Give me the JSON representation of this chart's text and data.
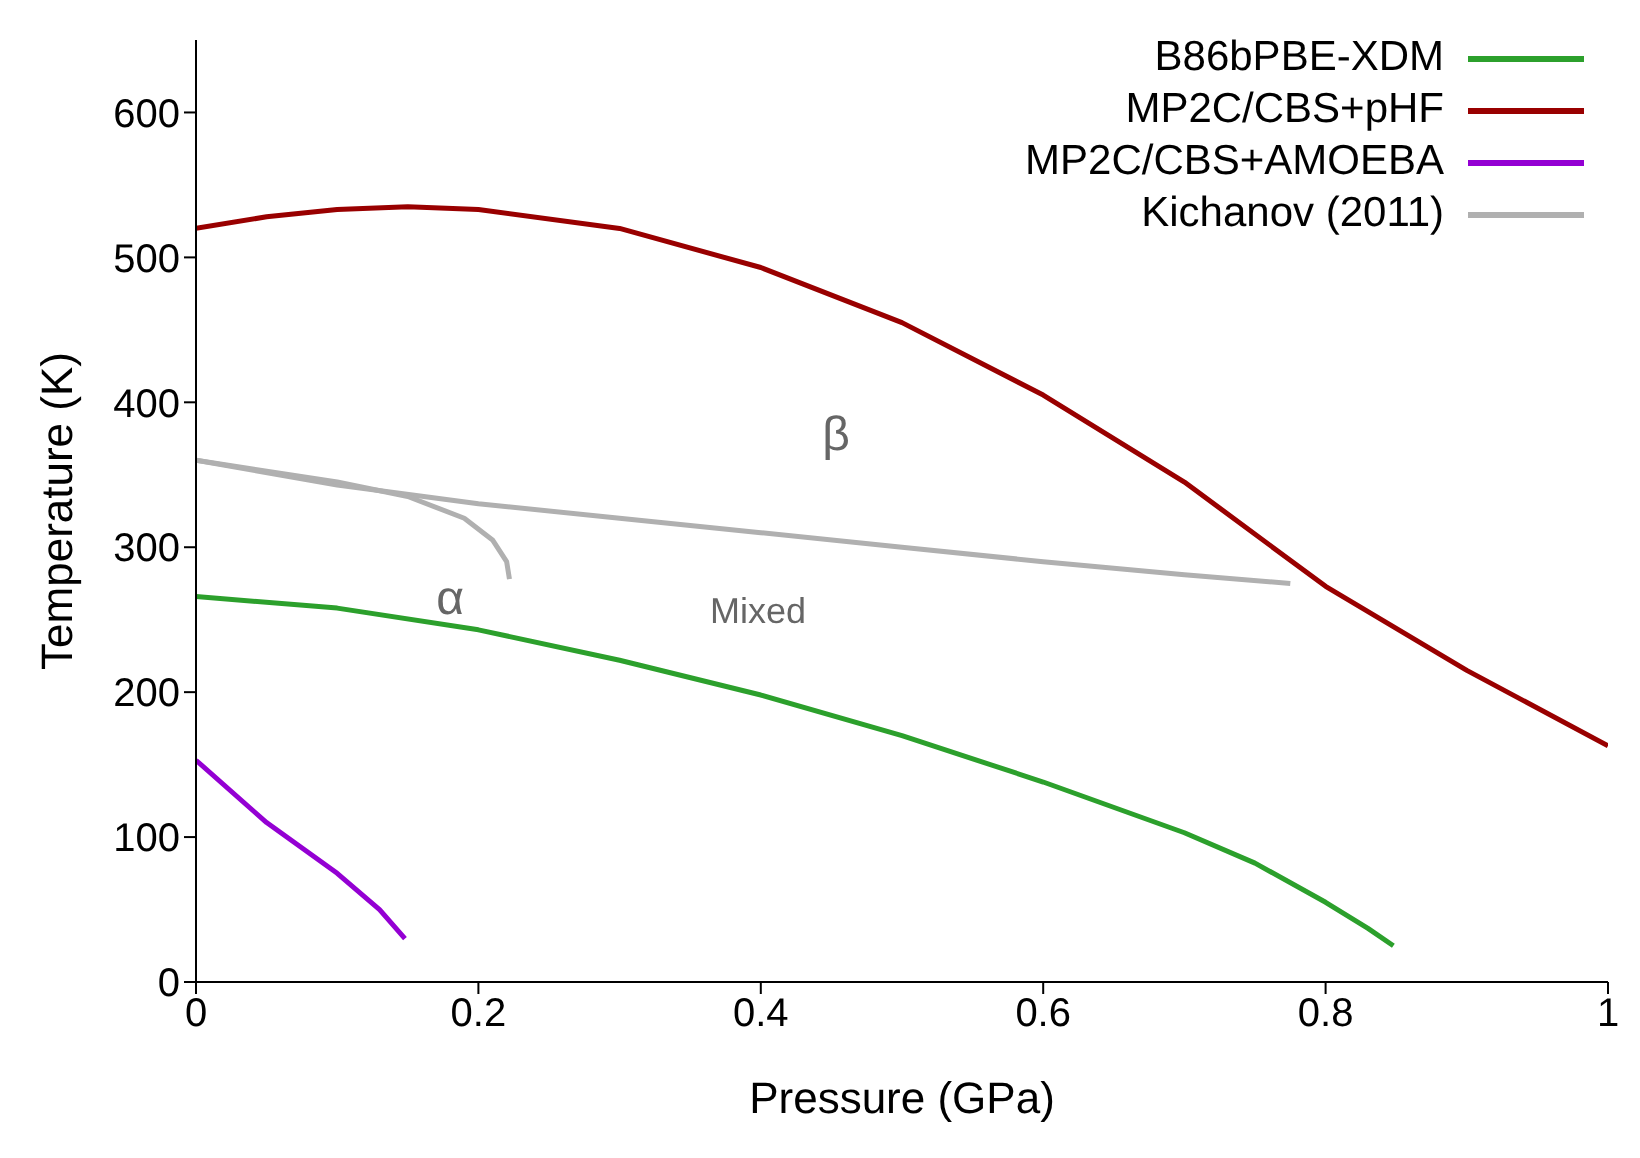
{
  "chart_data": {
    "type": "line",
    "xlabel": "Pressure (GPa)",
    "ylabel": "Temperature (K)",
    "xlim": [
      0,
      1
    ],
    "xticks": [
      0,
      0.2,
      0.4,
      0.6,
      0.8,
      1
    ],
    "ylim": [
      0,
      650
    ],
    "yticks": [
      0,
      100,
      200,
      300,
      400,
      500,
      600
    ],
    "grid": false,
    "legend": "top right",
    "marker": "none",
    "series": [
      {
        "name": "B86bPBE-XDM",
        "color": "#2ca02c",
        "x": [
          0,
          0.1,
          0.2,
          0.3,
          0.4,
          0.5,
          0.6,
          0.7,
          0.75,
          0.8,
          0.83,
          0.848
        ],
        "values": [
          266,
          258,
          243,
          222,
          198,
          170,
          138,
          103,
          82,
          55,
          37,
          25
        ]
      },
      {
        "name": "MP2C/CBS+pHF",
        "color": "#990000",
        "x": [
          0,
          0.05,
          0.1,
          0.15,
          0.2,
          0.3,
          0.4,
          0.5,
          0.6,
          0.7,
          0.8,
          0.9,
          1
        ],
        "values": [
          520,
          528,
          533,
          535,
          533,
          520,
          493,
          455,
          405,
          345,
          273,
          215,
          163
        ]
      },
      {
        "name": "MP2C/CBS+AMOEBA",
        "color": "#9400d3",
        "x": [
          0,
          0.05,
          0.1,
          0.13,
          0.148
        ],
        "values": [
          153,
          110,
          75,
          50,
          30
        ]
      },
      {
        "name": "Kichanov (2011)",
        "color": "#b0b0b0",
        "x": [
          0,
          0.1,
          0.2,
          0.3,
          0.4,
          0.5,
          0.6,
          0.7,
          0.775
        ],
        "values": [
          360,
          343,
          330,
          320,
          310,
          300,
          290,
          281,
          275
        ]
      },
      {
        "color": "#b0b0b0",
        "x": [
          0,
          0.1,
          0.15,
          0.19,
          0.21,
          0.22,
          0.222
        ],
        "values": [
          360,
          345,
          335,
          320,
          305,
          290,
          278
        ]
      }
    ],
    "annotations": [
      "β",
      "α",
      "Mixed"
    ]
  }
}
